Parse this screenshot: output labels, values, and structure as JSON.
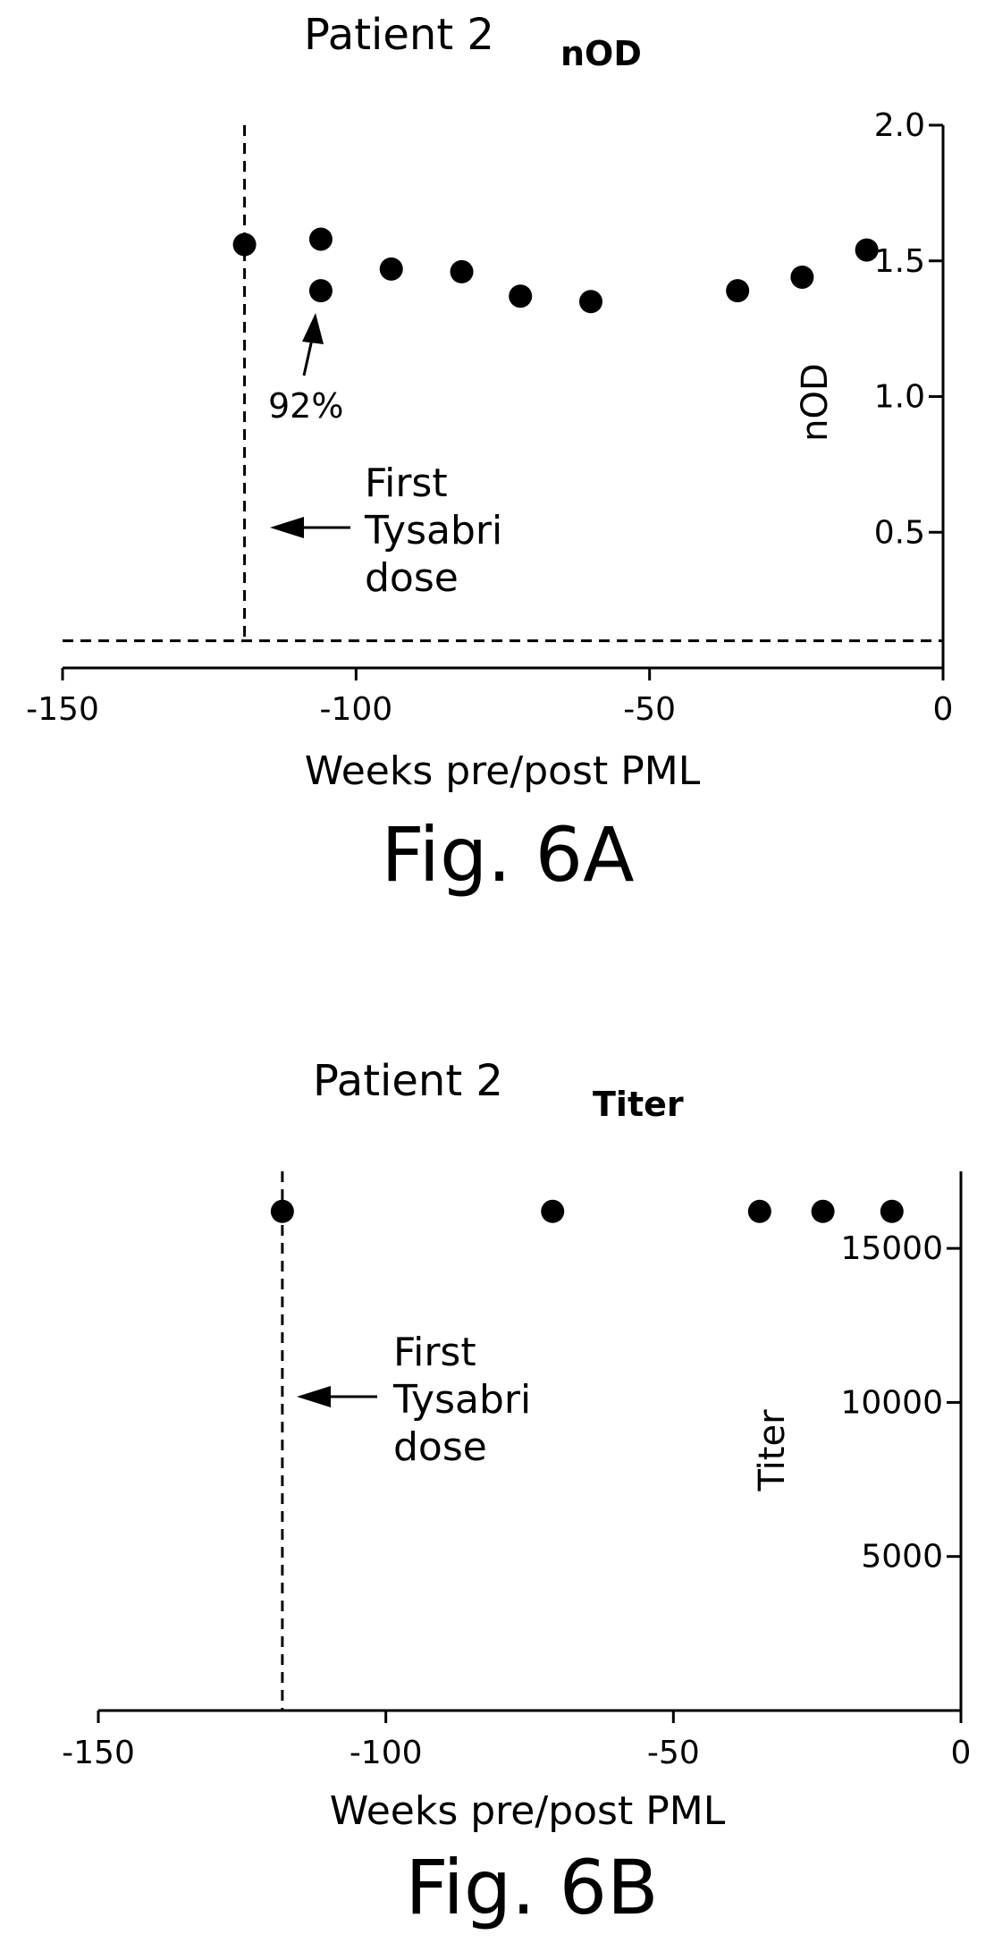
{
  "chart_data": [
    {
      "type": "scatter",
      "title": "Patient 2",
      "subtitle": "nOD",
      "xlabel": "Weeks pre/post PML",
      "ylabel": "nOD",
      "xlim": [
        -150,
        0
      ],
      "ylim": [
        0,
        2.0
      ],
      "x_ticks": [
        "-150",
        "-100",
        "-50",
        "0"
      ],
      "y_ticks": [
        "0.5",
        "1.0",
        "1.5",
        "2.0"
      ],
      "y_axis_side": "right",
      "points": [
        {
          "x": -119,
          "y": 1.56
        },
        {
          "x": -106,
          "y": 1.58
        },
        {
          "x": -106,
          "y": 1.39
        },
        {
          "x": -94,
          "y": 1.47
        },
        {
          "x": -82,
          "y": 1.46
        },
        {
          "x": -72,
          "y": 1.37
        },
        {
          "x": -60,
          "y": 1.35
        },
        {
          "x": -35,
          "y": 1.39
        },
        {
          "x": -24,
          "y": 1.44
        },
        {
          "x": -13,
          "y": 1.54
        }
      ],
      "reference_lines": [
        {
          "orientation": "vertical",
          "x": -119,
          "style": "dashed"
        },
        {
          "orientation": "horizontal",
          "y": 0.1,
          "style": "dashed"
        }
      ],
      "annotations": {
        "percent": "92%",
        "dose_lines": [
          "First",
          "Tysabri",
          "dose"
        ]
      },
      "figure_label": "Fig. 6A"
    },
    {
      "type": "scatter",
      "title": "Patient 2",
      "subtitle": "Titer",
      "xlabel": "Weeks pre/post PML",
      "ylabel": "Titer",
      "xlim": [
        -150,
        0
      ],
      "ylim": [
        0,
        17500
      ],
      "x_ticks": [
        "-150",
        "-100",
        "-50",
        "0"
      ],
      "y_ticks": [
        "5000",
        "10000",
        "15000"
      ],
      "y_axis_side": "right",
      "points": [
        {
          "x": -118,
          "y": 16200
        },
        {
          "x": -71,
          "y": 16200
        },
        {
          "x": -35,
          "y": 16200
        },
        {
          "x": -24,
          "y": 16200
        },
        {
          "x": -12,
          "y": 16200
        }
      ],
      "reference_lines": [
        {
          "orientation": "vertical",
          "x": -118,
          "style": "dashed"
        }
      ],
      "annotations": {
        "dose_lines": [
          "First",
          "Tysabri",
          "dose"
        ]
      },
      "figure_label": "Fig. 6B"
    }
  ]
}
